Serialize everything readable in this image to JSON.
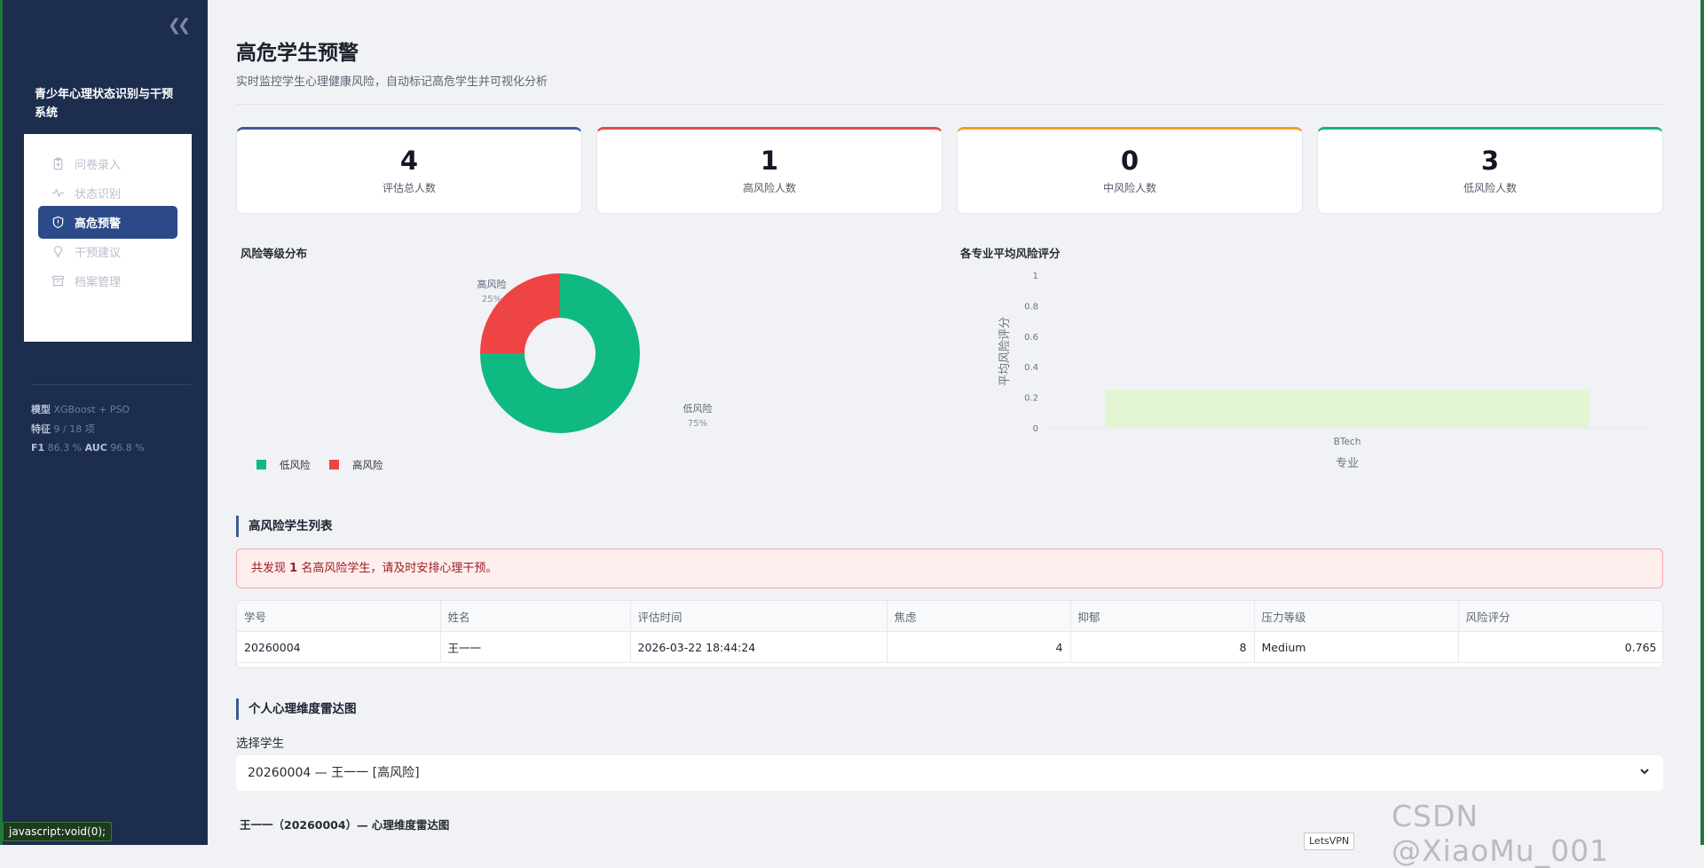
{
  "app": {
    "title": "青少年心理状态识别与干预系统",
    "collapse_icon": "chevrons-left-icon"
  },
  "sidebar": {
    "items": [
      {
        "label": "问卷录入",
        "icon": "clipboard-icon",
        "active": false
      },
      {
        "label": "状态识别",
        "icon": "activity-icon",
        "active": false
      },
      {
        "label": "高危预警",
        "icon": "shield-alert-icon",
        "active": true
      },
      {
        "label": "干预建议",
        "icon": "lightbulb-icon",
        "active": false
      },
      {
        "label": "档案管理",
        "icon": "archive-icon",
        "active": false
      }
    ],
    "meta": {
      "model_label": "模型",
      "model_value": "XGBoost + PSO",
      "feature_label": "特征",
      "feature_value": "9 / 18 项",
      "f1_label": "F1",
      "f1_value": "86.3 %",
      "auc_label": "AUC",
      "auc_value": "96.8 %"
    }
  },
  "page": {
    "title": "高危学生预警",
    "subtitle": "实时监控学生心理健康风险，自动标记高危学生并可视化分析"
  },
  "kpis": [
    {
      "value": "4",
      "label": "评估总人数",
      "color": "#3f5b9e"
    },
    {
      "value": "1",
      "label": "高风险人数",
      "color": "#e24b4b"
    },
    {
      "value": "0",
      "label": "中风险人数",
      "color": "#f0a020"
    },
    {
      "value": "3",
      "label": "低风险人数",
      "color": "#16b37e"
    }
  ],
  "chart_data": [
    {
      "type": "pie",
      "title": "风险等级分布",
      "categories": [
        "低风险",
        "高风险"
      ],
      "values": [
        75,
        25
      ],
      "labels": {
        "high_name": "高风险",
        "high_pct": "25%",
        "low_name": "低风险",
        "low_pct": "75%"
      },
      "colors": [
        "#10b981",
        "#ef4444"
      ],
      "legend": "bottom-left",
      "hole": true
    },
    {
      "type": "bar",
      "title": "各专业平均风险评分",
      "categories": [
        "BTech"
      ],
      "values": [
        0.25
      ],
      "xlabel": "专业",
      "ylabel": "平均风险评分",
      "ylim": [
        0,
        1
      ],
      "yticks": [
        "0",
        "0.2",
        "0.4",
        "0.6",
        "0.8",
        "1"
      ],
      "bar_color": "#e4f5d4",
      "grid": false
    }
  ],
  "high_risk": {
    "section_title": "高风险学生列表",
    "alert_prefix": "共发现",
    "alert_count": "1",
    "alert_suffix": "名高风险学生，请及时安排心理干预。",
    "columns": [
      "学号",
      "姓名",
      "评估时间",
      "焦虑",
      "抑郁",
      "压力等级",
      "风险评分"
    ],
    "rows": [
      [
        "20260004",
        "王一一",
        "2026-03-22 18:44:24",
        "4",
        "8",
        "Medium",
        "0.765"
      ]
    ]
  },
  "radar": {
    "section_title": "个人心理维度雷达图",
    "select_label": "选择学生",
    "selected": "20260004 — 王一一 [高风险]",
    "chart_title": "王一一（20260004）— 心理维度雷达图"
  },
  "overlay": {
    "status_bar": "javascript:void(0);",
    "watermark": "CSDN @XiaoMu_001",
    "vpn_tip": "LetsVPN"
  }
}
